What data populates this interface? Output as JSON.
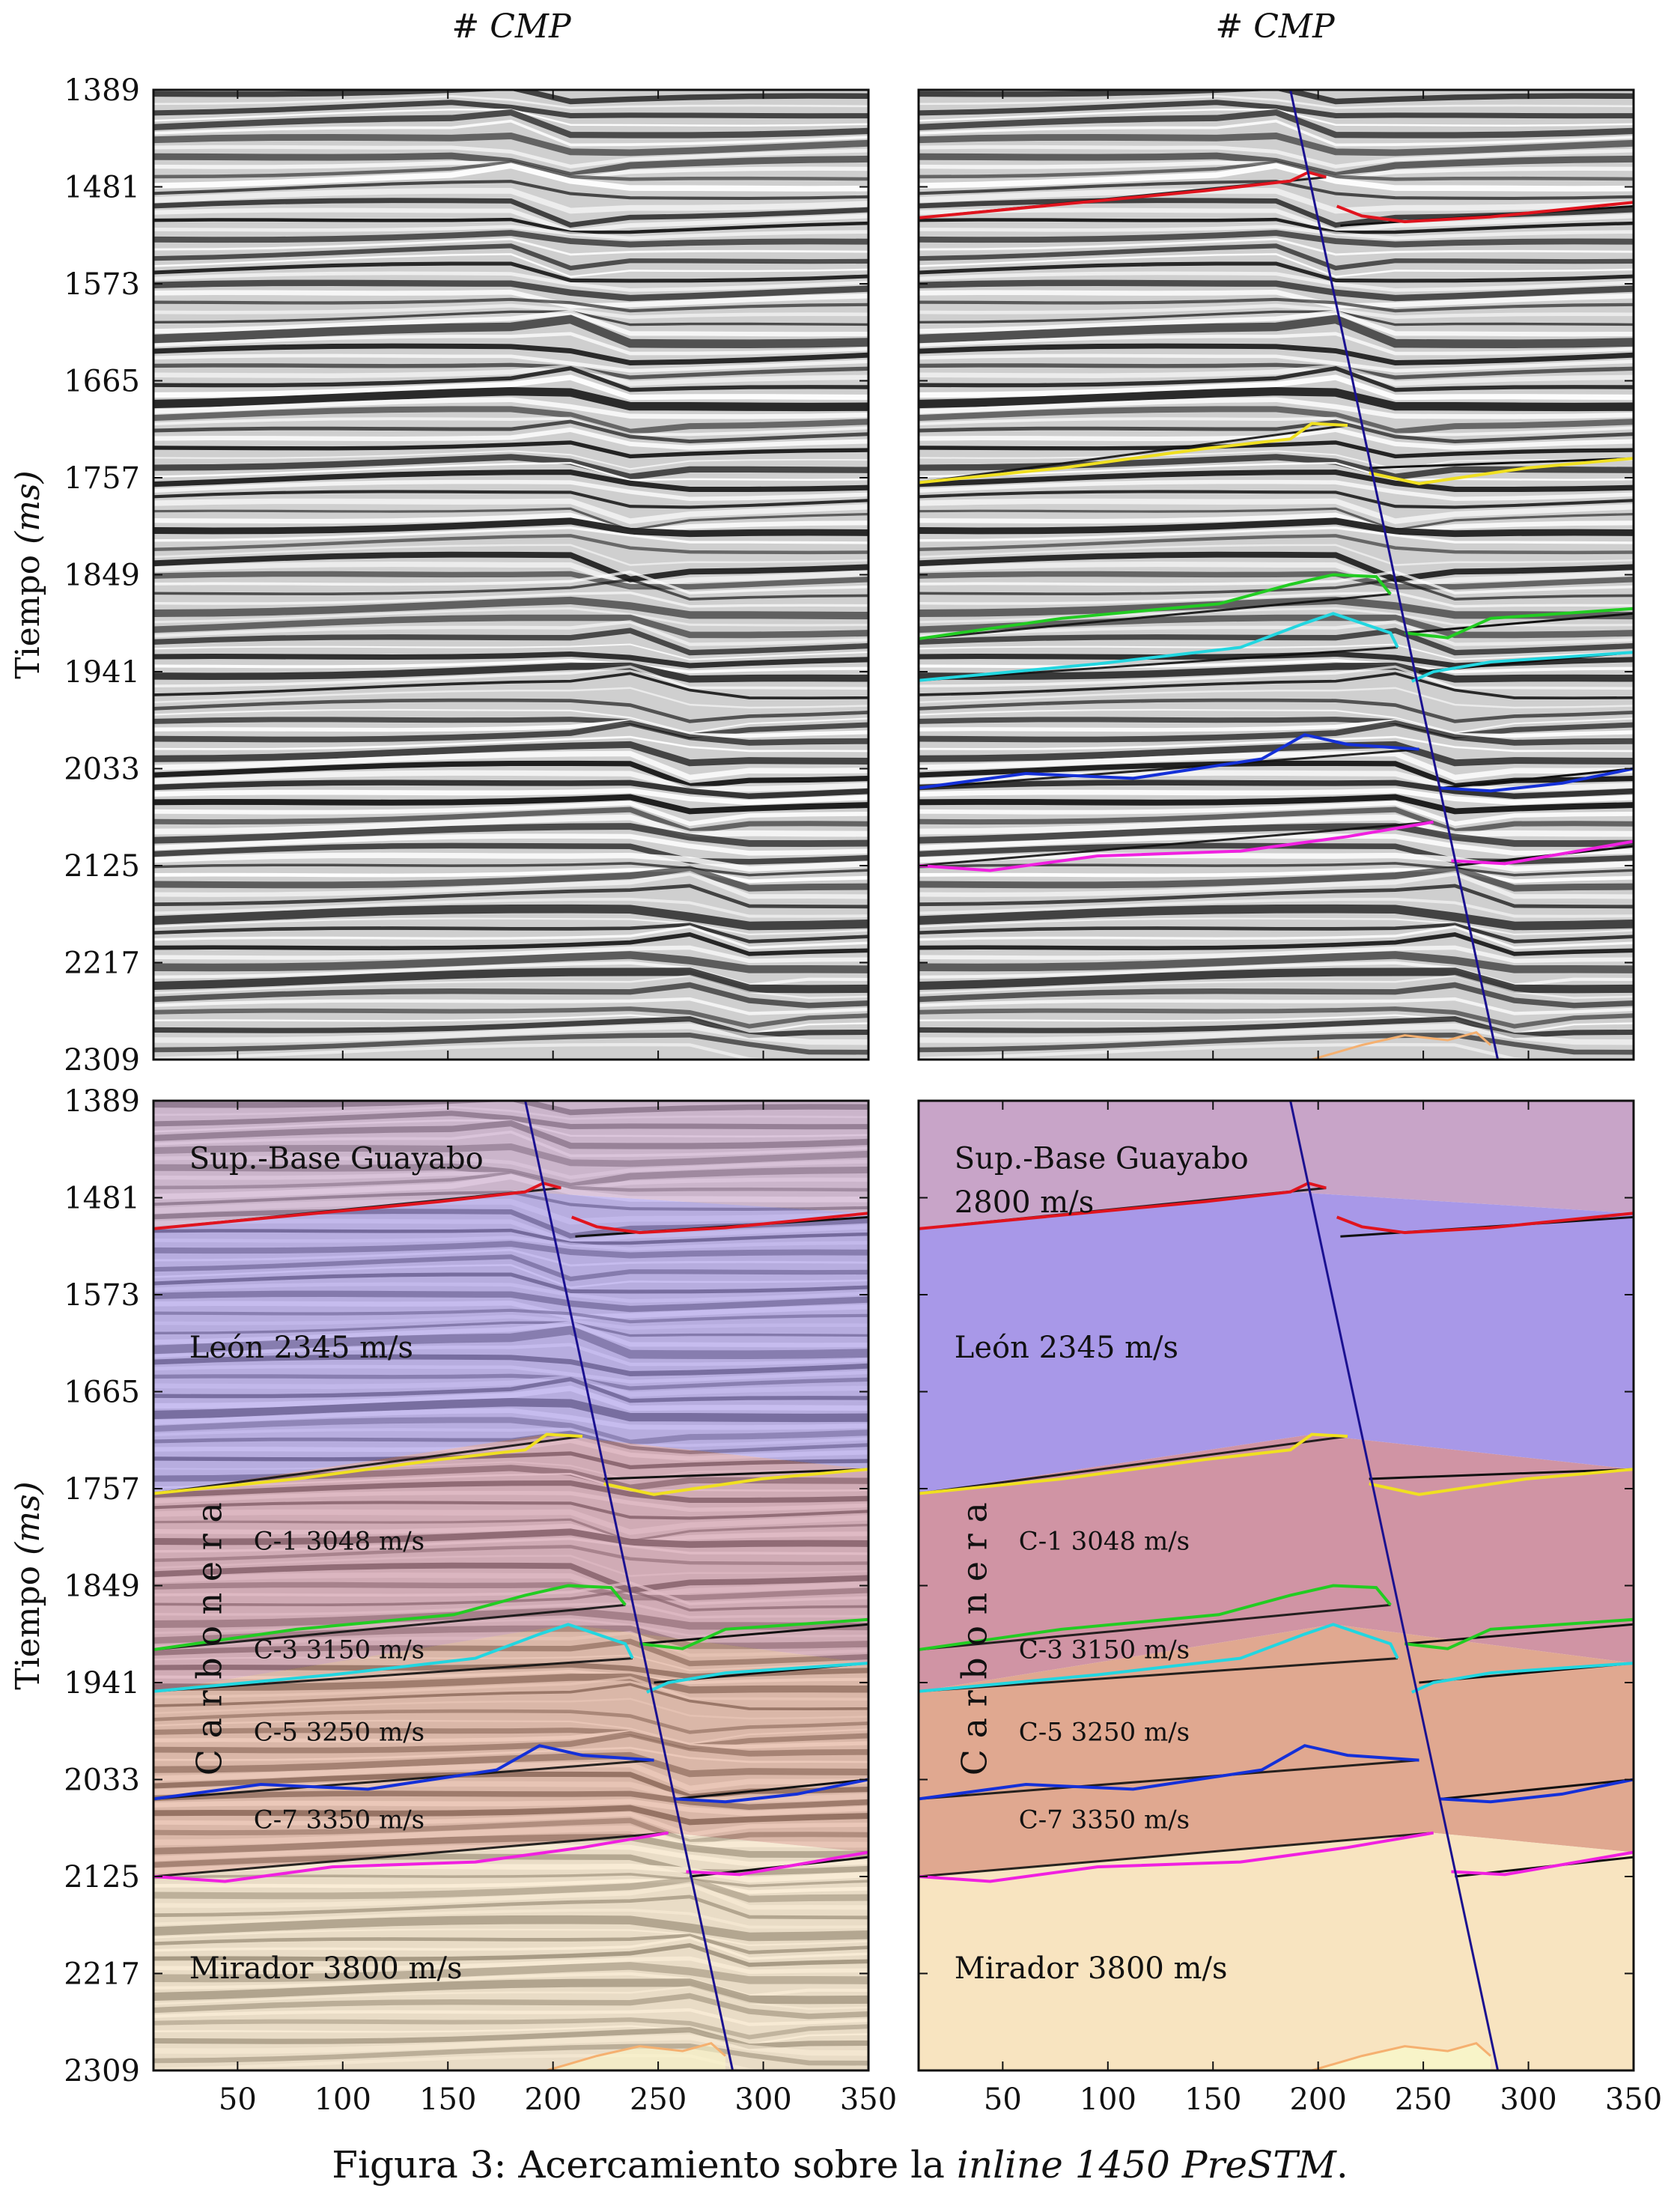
{
  "columns": {
    "left_title": "# CMP",
    "right_title": "# CMP"
  },
  "axes": {
    "ylabel": "Tiempo (ms)",
    "ylabel_main": "Tiempo",
    "ylabel_unit": "(ms)",
    "y_ticks": [
      "1389",
      "1481",
      "1573",
      "1665",
      "1757",
      "1849",
      "1941",
      "2033",
      "2125",
      "2217",
      "2309"
    ],
    "x_ticks": [
      "50",
      "100",
      "150",
      "200",
      "250",
      "300",
      "350"
    ]
  },
  "layers": {
    "top": "Sup.-Base Guayabo",
    "top_velocity": "2800 m/s",
    "leon": "León  2345 m/s",
    "carbonera": "C a r b o n e r a",
    "c1": "C-1  3048 m/s",
    "c3": "C-3  3150 m/s",
    "c5": "C-5  3250 m/s",
    "c7": "C-7  3350 m/s",
    "mirador": "Mirador  3800 m/s"
  },
  "caption": {
    "prefix": "Figura 3: Acercamiento sobre la ",
    "emph": "inline 1450 PreSTM",
    "suffix": "."
  },
  "colors": {
    "horizon_red": "#e0141e",
    "horizon_yellow": "#f0e020",
    "horizon_green": "#22cc22",
    "horizon_cyan": "#22d6e0",
    "horizon_blue": "#1430d8",
    "horizon_magenta": "#f020e0",
    "horizon_orange": "#f5b070",
    "fault": "#1a1090",
    "fill_guayabo": "#c8a4c8",
    "fill_leon": "#a898e8",
    "fill_carbonera_top": "#d094a4",
    "fill_carbonera_bottom": "#e0a890",
    "fill_mirador": "#f8e4c0"
  }
}
